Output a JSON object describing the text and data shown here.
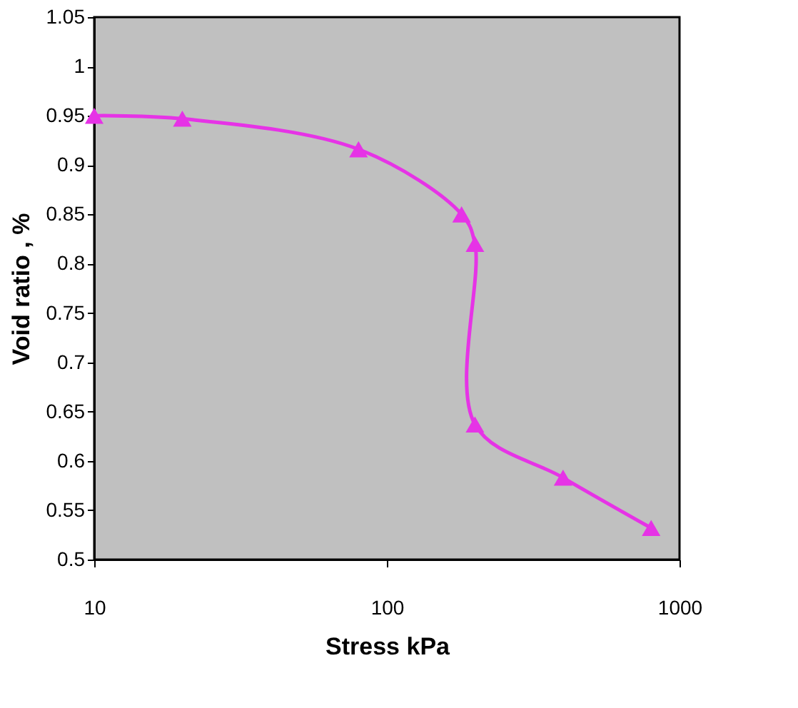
{
  "chart_data": {
    "type": "line",
    "xlabel": "Stress kPa",
    "ylabel": "Void ratio , %",
    "x": [
      10,
      20,
      80,
      180,
      200,
      200,
      400,
      800
    ],
    "series": [
      {
        "color": "#e633e6",
        "values": [
          0.95,
          0.947,
          0.916,
          0.85,
          0.82,
          0.637,
          0.583,
          0.532
        ]
      }
    ],
    "log": "x",
    "xlim": [
      10,
      1000
    ],
    "xticks": [
      10,
      100,
      1000
    ],
    "ylim": [
      0.5,
      1.05
    ],
    "yticks": [
      0.5,
      0.55,
      0.6,
      0.65,
      0.7,
      0.75,
      0.8,
      0.85,
      0.9,
      0.95,
      1,
      1.05
    ],
    "grid": false,
    "marker": "triangle",
    "line_style": "solid"
  }
}
